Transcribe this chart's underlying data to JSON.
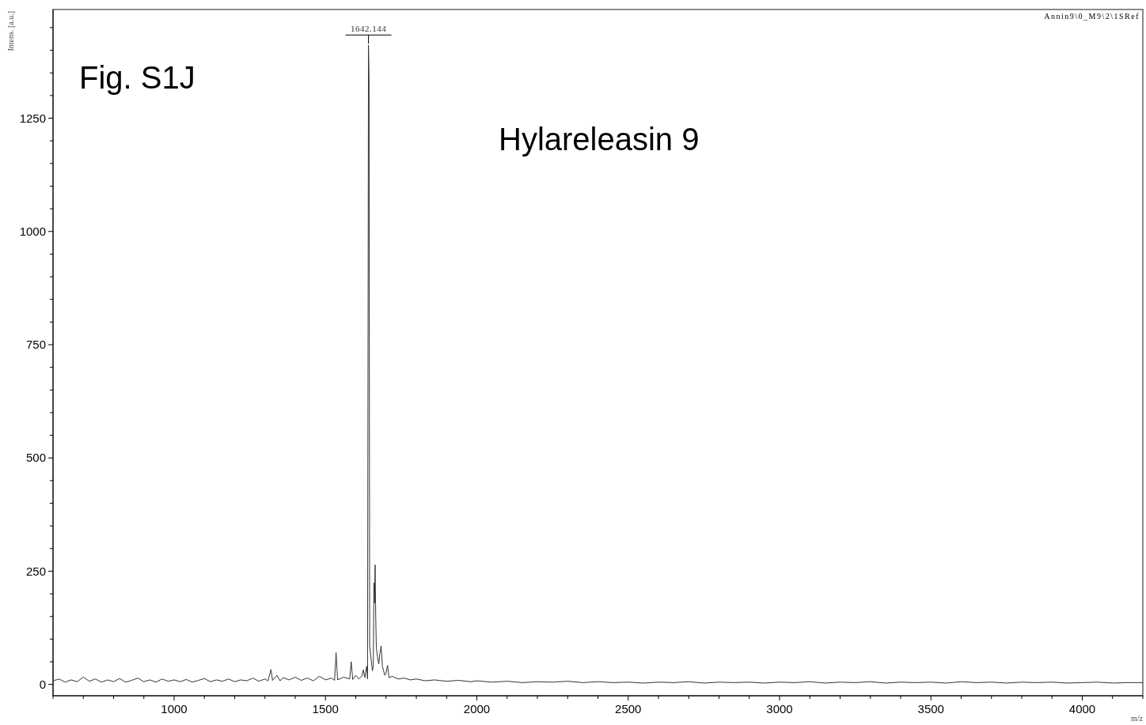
{
  "chart_data": {
    "type": "line",
    "xlabel": "m/z",
    "ylabel": "Intens. [a.u.]",
    "annotations": [
      "Fig. S1J",
      "Hylareleasin 9",
      "Annin9\\0_M9\\2\\1SRef",
      {
        "text": "1642.144",
        "x": 1642,
        "y": 1411
      }
    ],
    "xlim": [
      600,
      4200
    ],
    "ylim": [
      -25,
      1490
    ],
    "xticks": [
      {
        "value": 600,
        "label": null
      },
      {
        "value": 700,
        "label": null
      },
      {
        "value": 800,
        "label": null
      },
      {
        "value": 900,
        "label": null
      },
      1000,
      {
        "value": 1100,
        "label": null
      },
      {
        "value": 1200,
        "label": null
      },
      {
        "value": 1300,
        "label": null
      },
      {
        "value": 1400,
        "label": null
      },
      1500,
      {
        "value": 1600,
        "label": null
      },
      {
        "value": 1700,
        "label": null
      },
      {
        "value": 1800,
        "label": null
      },
      {
        "value": 1900,
        "label": null
      },
      2000,
      {
        "value": 2100,
        "label": null
      },
      {
        "value": 2200,
        "label": null
      },
      {
        "value": 2300,
        "label": null
      },
      {
        "value": 2400,
        "label": null
      },
      2500,
      {
        "value": 2600,
        "label": null
      },
      {
        "value": 2700,
        "label": null
      },
      {
        "value": 2800,
        "label": null
      },
      {
        "value": 2900,
        "label": null
      },
      3000,
      {
        "value": 3100,
        "label": null
      },
      {
        "value": 3200,
        "label": null
      },
      {
        "value": 3300,
        "label": null
      },
      {
        "value": 3400,
        "label": null
      },
      3500,
      {
        "value": 3600,
        "label": null
      },
      {
        "value": 3700,
        "label": null
      },
      {
        "value": 3800,
        "label": null
      },
      {
        "value": 3900,
        "label": null
      },
      4000,
      {
        "value": 4100,
        "label": null
      },
      {
        "value": 4200,
        "label": null
      }
    ],
    "yticks": [
      0,
      {
        "value": 50,
        "label": null
      },
      {
        "value": 100,
        "label": null
      },
      {
        "value": 150,
        "label": null
      },
      {
        "value": 200,
        "label": null
      },
      250,
      {
        "value": 300,
        "label": null
      },
      {
        "value": 350,
        "label": null
      },
      {
        "value": 400,
        "label": null
      },
      {
        "value": 450,
        "label": null
      },
      500,
      {
        "value": 550,
        "label": null
      },
      {
        "value": 600,
        "label": null
      },
      {
        "value": 650,
        "label": null
      },
      {
        "value": 700,
        "label": null
      },
      750,
      {
        "value": 800,
        "label": null
      },
      {
        "value": 850,
        "label": null
      },
      {
        "value": 900,
        "label": null
      },
      {
        "value": 950,
        "label": null
      },
      1000,
      {
        "value": 1050,
        "label": null
      },
      {
        "value": 1100,
        "label": null
      },
      {
        "value": 1150,
        "label": null
      },
      {
        "value": 1200,
        "label": null
      },
      1250,
      {
        "value": 1300,
        "label": null
      },
      {
        "value": 1350,
        "label": null
      },
      {
        "value": 1400,
        "label": null
      },
      {
        "value": 1450,
        "label": null
      }
    ],
    "series": [
      {
        "color": "#333333",
        "x": [
          600,
          620,
          640,
          660,
          680,
          700,
          720,
          740,
          760,
          780,
          800,
          820,
          840,
          860,
          880,
          900,
          920,
          940,
          960,
          980,
          1000,
          1020,
          1040,
          1060,
          1080,
          1100,
          1120,
          1140,
          1160,
          1180,
          1200,
          1220,
          1240,
          1260,
          1280,
          1300,
          1310,
          1320,
          1325,
          1340,
          1350,
          1360,
          1380,
          1400,
          1420,
          1440,
          1460,
          1480,
          1500,
          1520,
          1530,
          1535,
          1540,
          1560,
          1580,
          1585,
          1590,
          1600,
          1610,
          1620,
          1625,
          1630,
          1636,
          1639,
          1642,
          1644,
          1646,
          1650,
          1655,
          1658,
          1660,
          1662,
          1664,
          1666,
          1668,
          1672,
          1676,
          1680,
          1684,
          1688,
          1692,
          1696,
          1700,
          1705,
          1710,
          1720,
          1740,
          1760,
          1780,
          1800,
          1830,
          1860,
          1900,
          1940,
          1980,
          2000,
          2050,
          2100,
          2150,
          2200,
          2250,
          2300,
          2350,
          2400,
          2450,
          2500,
          2550,
          2600,
          2650,
          2700,
          2750,
          2800,
          2850,
          2900,
          2950,
          3000,
          3050,
          3100,
          3150,
          3200,
          3250,
          3300,
          3350,
          3400,
          3450,
          3500,
          3550,
          3600,
          3650,
          3700,
          3750,
          3800,
          3850,
          3900,
          3950,
          4000,
          4050,
          4100,
          4150,
          4200
        ],
        "values": [
          8,
          12,
          5,
          10,
          6,
          16,
          7,
          12,
          5,
          10,
          6,
          13,
          5,
          9,
          14,
          6,
          10,
          5,
          12,
          7,
          10,
          6,
          11,
          5,
          9,
          13,
          6,
          10,
          7,
          12,
          6,
          10,
          8,
          14,
          7,
          12,
          8,
          33,
          9,
          20,
          8,
          15,
          10,
          16,
          9,
          14,
          8,
          18,
          10,
          14,
          9,
          70,
          10,
          16,
          12,
          50,
          11,
          20,
          12,
          18,
          32,
          15,
          40,
          12,
          1411,
          1336,
          85,
          60,
          30,
          40,
          224,
          180,
          264,
          150,
          80,
          60,
          45,
          70,
          85,
          40,
          30,
          20,
          25,
          42,
          15,
          18,
          12,
          14,
          10,
          12,
          8,
          10,
          7,
          9,
          6,
          8,
          5,
          7,
          4,
          6,
          5,
          7,
          4,
          6,
          4,
          5,
          3,
          5,
          4,
          6,
          3,
          5,
          4,
          5,
          3,
          5,
          4,
          6,
          3,
          5,
          4,
          6,
          3,
          5,
          4,
          5,
          3,
          6,
          4,
          5,
          3,
          5,
          4,
          5,
          3,
          4,
          5,
          3,
          4,
          4
        ]
      }
    ]
  }
}
